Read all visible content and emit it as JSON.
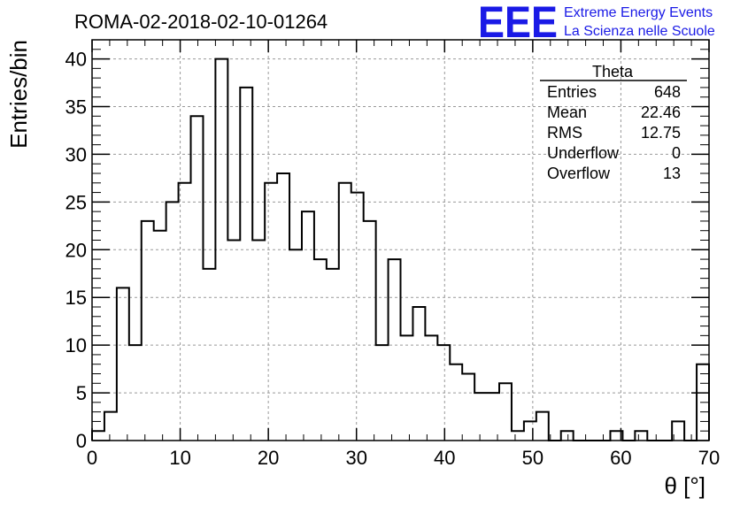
{
  "header": {
    "title": "ROMA-02-2018-02-10-01264",
    "logo_text": "EEE",
    "logo_line1": "Extreme Energy Events",
    "logo_line2": "La Scienza nelle Scuole",
    "logo_color": "#1a1ae6"
  },
  "stats_box": {
    "name": "Theta",
    "rows": [
      {
        "label": "Entries",
        "value": "648"
      },
      {
        "label": "Mean",
        "value": "22.46"
      },
      {
        "label": "RMS",
        "value": "12.75"
      },
      {
        "label": "Underflow",
        "value": "0"
      },
      {
        "label": "Overflow",
        "value": "13"
      }
    ]
  },
  "chart_data": {
    "type": "histogram",
    "xlabel": "θ [°]",
    "ylabel": "Entries/bin",
    "xlim": [
      0,
      70
    ],
    "ylim": [
      0,
      42
    ],
    "grid": true,
    "bin_width": 1.4,
    "bin_start": 0,
    "values": [
      1,
      3,
      16,
      10,
      23,
      22,
      25,
      27,
      34,
      18,
      40,
      21,
      37,
      21,
      27,
      28,
      20,
      24,
      19,
      18,
      27,
      26,
      23,
      10,
      19,
      11,
      14,
      11,
      10,
      8,
      7,
      5,
      5,
      6,
      1,
      2,
      3,
      0,
      1,
      0,
      0,
      0,
      1,
      0,
      1,
      0,
      0,
      2,
      0,
      8
    ],
    "x_ticks": [
      0,
      10,
      20,
      30,
      40,
      50,
      60,
      70
    ],
    "y_ticks": [
      0,
      5,
      10,
      15,
      20,
      25,
      30,
      35,
      40
    ]
  }
}
